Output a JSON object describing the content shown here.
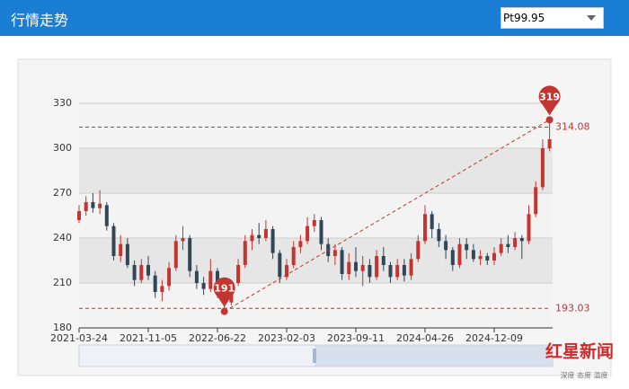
{
  "header": {
    "title": "行情走势",
    "select": "Pt99.95"
  },
  "watermark": {
    "brand": "红星新闻",
    "slogan": "深度 态度 温度"
  },
  "chart_data": {
    "type": "candlestick",
    "categories": [
      "2021-03-24",
      null,
      null,
      null,
      null,
      null,
      null,
      null,
      null,
      null,
      "2021-11-05",
      null,
      null,
      null,
      null,
      null,
      null,
      null,
      null,
      null,
      "2022-06-22",
      null,
      null,
      null,
      null,
      null,
      null,
      null,
      null,
      null,
      "2023-02-03",
      null,
      null,
      null,
      null,
      null,
      null,
      null,
      null,
      null,
      "2023-09-11",
      null,
      null,
      null,
      null,
      null,
      null,
      null,
      null,
      null,
      "2024-04-26",
      null,
      null,
      null,
      null,
      null,
      null,
      null,
      null,
      null,
      "2024-12-09",
      null,
      null,
      null,
      null,
      null,
      null,
      null,
      null
    ],
    "open": [
      252,
      258,
      264,
      260,
      262,
      248,
      228,
      236,
      222,
      212,
      222,
      215,
      204,
      208,
      220,
      238,
      240,
      218,
      210,
      206,
      218,
      204,
      197,
      210,
      222,
      238,
      242,
      240,
      246,
      230,
      214,
      222,
      234,
      238,
      248,
      252,
      236,
      228,
      232,
      216,
      224,
      218,
      222,
      214,
      228,
      222,
      214,
      222,
      215,
      226,
      238,
      256,
      246,
      238,
      232,
      222,
      236,
      232,
      226,
      228,
      225,
      230,
      236,
      234,
      240,
      238,
      256,
      274,
      300
    ],
    "close": [
      258,
      264,
      260,
      263,
      248,
      228,
      236,
      222,
      212,
      222,
      215,
      204,
      208,
      220,
      238,
      240,
      218,
      210,
      206,
      218,
      204,
      197,
      210,
      222,
      238,
      242,
      240,
      246,
      230,
      214,
      222,
      234,
      238,
      248,
      252,
      236,
      228,
      232,
      216,
      224,
      218,
      222,
      214,
      228,
      222,
      214,
      222,
      215,
      226,
      238,
      256,
      246,
      238,
      232,
      222,
      236,
      232,
      226,
      228,
      225,
      230,
      236,
      234,
      240,
      238,
      256,
      274,
      300,
      306
    ],
    "high": [
      262,
      268,
      270,
      272,
      264,
      250,
      242,
      240,
      225,
      226,
      228,
      218,
      212,
      224,
      242,
      248,
      242,
      222,
      214,
      226,
      220,
      206,
      212,
      226,
      242,
      246,
      250,
      252,
      248,
      232,
      226,
      238,
      242,
      254,
      256,
      254,
      240,
      236,
      234,
      230,
      234,
      228,
      226,
      232,
      234,
      224,
      226,
      226,
      230,
      242,
      262,
      258,
      250,
      242,
      234,
      240,
      240,
      236,
      232,
      230,
      234,
      240,
      242,
      244,
      242,
      262,
      278,
      306,
      319
    ],
    "low": [
      250,
      255,
      257,
      256,
      245,
      225,
      224,
      220,
      208,
      210,
      212,
      200,
      198,
      205,
      218,
      232,
      214,
      206,
      202,
      204,
      200,
      191,
      195,
      208,
      220,
      232,
      236,
      238,
      226,
      210,
      212,
      220,
      230,
      236,
      244,
      232,
      224,
      222,
      212,
      212,
      214,
      208,
      210,
      212,
      218,
      210,
      212,
      211,
      212,
      224,
      236,
      240,
      234,
      226,
      218,
      220,
      226,
      224,
      222,
      222,
      222,
      228,
      230,
      232,
      226,
      236,
      254,
      272,
      298
    ],
    "up_color": "#c23531",
    "down_color": "#314656",
    "ylim": [
      180,
      330
    ],
    "yticks": [
      180,
      210,
      240,
      270,
      300,
      330
    ],
    "split_area": true,
    "mark_lines": [
      314.08,
      193.03
    ],
    "mark_points": [
      {
        "type": "max",
        "value": 319
      },
      {
        "type": "min",
        "value": 191
      }
    ],
    "mark_color": "#c23531"
  }
}
